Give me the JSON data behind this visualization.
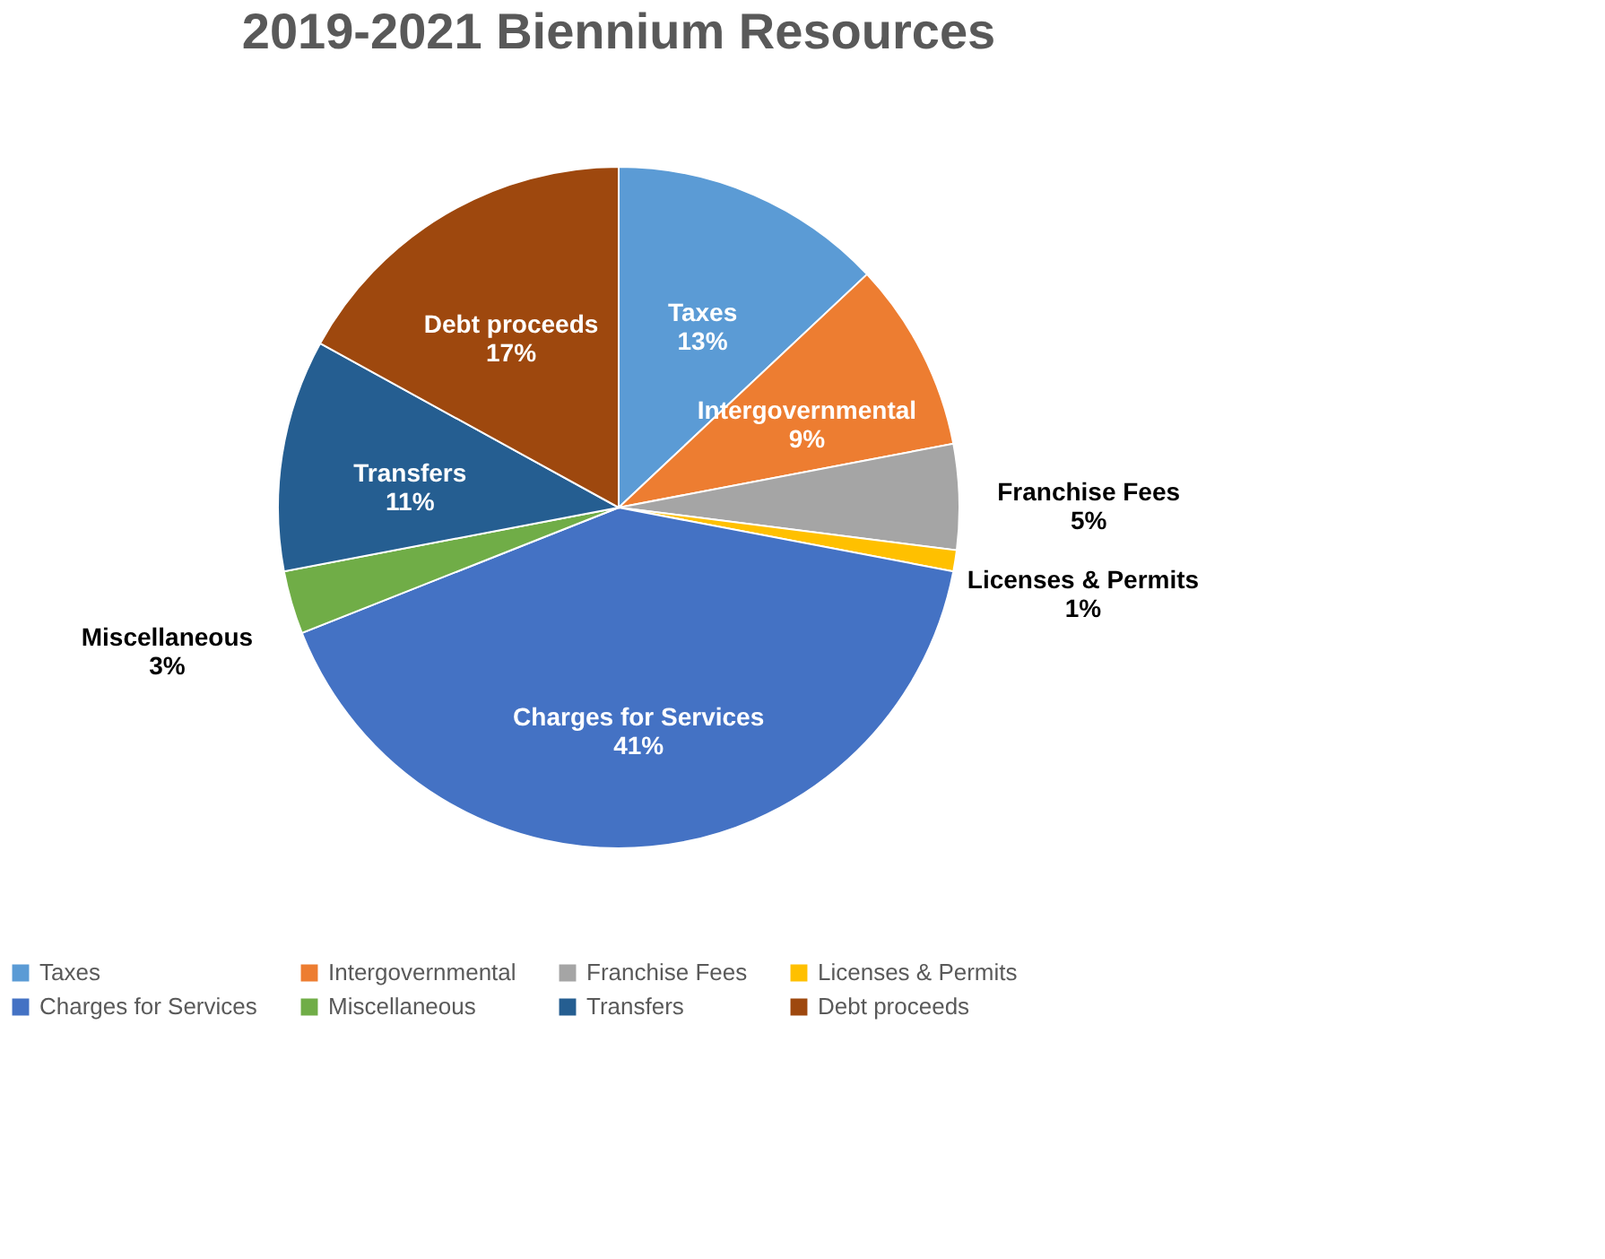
{
  "chart_data": {
    "type": "pie",
    "title": "2019-2021 Biennium Resources",
    "categories": [
      "Taxes",
      "Intergovernmental",
      "Franchise Fees",
      "Licenses & Permits",
      "Charges for Services",
      "Miscellaneous",
      "Transfers",
      "Debt proceeds"
    ],
    "values": [
      13,
      9,
      5,
      1,
      41,
      3,
      11,
      17
    ],
    "colors": [
      "#5b9bd5",
      "#ed7d31",
      "#a5a5a5",
      "#ffc000",
      "#4472c4",
      "#70ad47",
      "#255e91",
      "#9e480e"
    ],
    "value_labels": [
      "13%",
      "9%",
      "5%",
      "1%",
      "41%",
      "3%",
      "11%",
      "17%"
    ],
    "legend": "bottom"
  }
}
